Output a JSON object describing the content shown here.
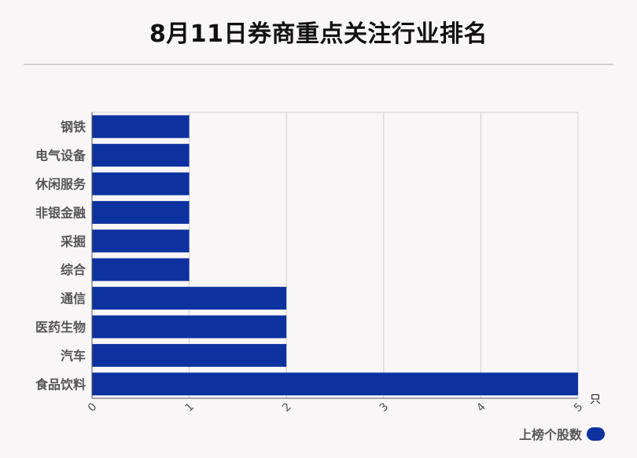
{
  "title": "8月11日券商重点关注行业排名",
  "unit": "只",
  "legend": {
    "label": "上榜个股数",
    "color": "#0d32a0"
  },
  "chart_data": {
    "type": "bar",
    "orientation": "horizontal",
    "title": "8月11日券商重点关注行业排名",
    "categories": [
      "钢铁",
      "电气设备",
      "休闲服务",
      "非银金融",
      "采掘",
      "综合",
      "通信",
      "医药生物",
      "汽车",
      "食品饮料"
    ],
    "series": [
      {
        "name": "上榜个股数",
        "values": [
          1,
          1,
          1,
          1,
          1,
          1,
          2,
          2,
          2,
          5
        ]
      }
    ],
    "xlim": [
      0,
      5
    ],
    "xticks": [
      "0",
      "1",
      "2",
      "3",
      "4",
      "5"
    ],
    "xunit": "只",
    "grid": true,
    "legend_position": "bottom-right",
    "bar_color": "#0d32a0"
  }
}
